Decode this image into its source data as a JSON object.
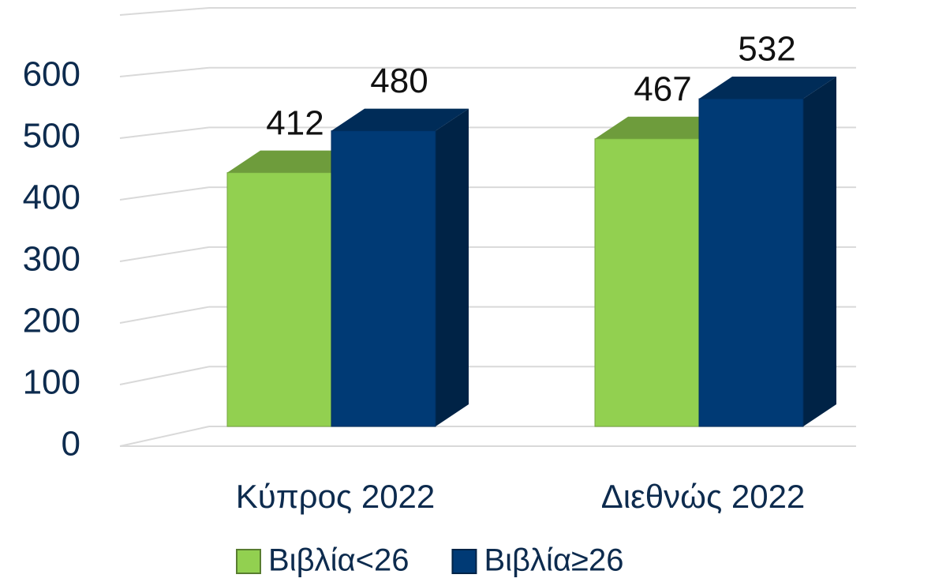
{
  "chart_data": {
    "type": "bar3d",
    "categories": [
      "Κύπρος 2022",
      "Διεθνώς 2022"
    ],
    "series": [
      {
        "name": "Βιβλία<26",
        "color": "#92d050",
        "values": [
          412,
          467
        ]
      },
      {
        "name": "Βιβλία≥26",
        "color": "#003a75",
        "values": [
          480,
          532
        ]
      }
    ],
    "ylim": [
      0,
      700
    ],
    "yticks": [
      0,
      100,
      200,
      300,
      400,
      500,
      600
    ],
    "grid": true,
    "legend": "bottom"
  }
}
